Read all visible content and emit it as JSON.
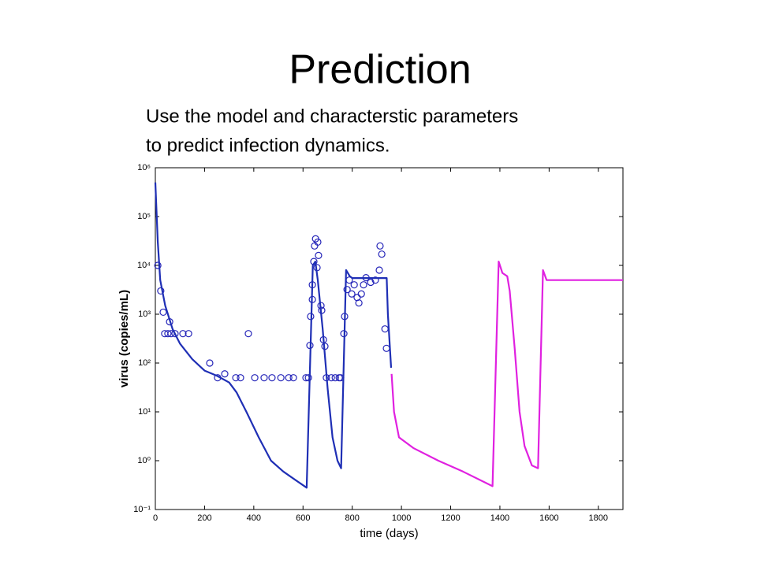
{
  "title": "Prediction",
  "subtitle_lines": [
    "Use the model and characterstic parameters",
    "to predict infection dynamics."
  ],
  "chart_data": {
    "type": "line",
    "xlabel": "time (days)",
    "ylabel": "virus (copies/mL)",
    "xlim": [
      0,
      1900
    ],
    "ylim": [
      0.1,
      1000000
    ],
    "log_y": true,
    "xticks": [
      0,
      200,
      400,
      600,
      800,
      1000,
      1200,
      1400,
      1600,
      1800
    ],
    "yticks": [
      {
        "value": 0.1,
        "label": "10⁻¹"
      },
      {
        "value": 1,
        "label": "10⁰"
      },
      {
        "value": 10,
        "label": "10¹"
      },
      {
        "value": 100,
        "label": "10²"
      },
      {
        "value": 1000,
        "label": "10³"
      },
      {
        "value": 10000,
        "label": "10⁴"
      },
      {
        "value": 100000,
        "label": "10⁵"
      },
      {
        "value": 1000000,
        "label": "10⁶"
      }
    ],
    "series": [
      {
        "type": "scatter",
        "color": "#2323b8",
        "x": [
          10,
          22,
          32,
          38,
          51,
          58,
          64,
          80,
          112,
          135,
          221,
          253,
          282,
          327,
          346,
          378,
          404,
          442,
          474,
          510,
          542,
          561,
          612,
          622,
          628,
          631,
          638,
          638,
          644,
          647,
          651,
          657,
          663,
          660,
          673,
          676,
          683,
          689,
          695,
          715,
          731,
          747,
          753,
          766,
          769,
          779,
          788,
          798,
          808,
          820,
          827,
          837,
          846,
          856,
          875,
          894,
          910,
          913,
          920,
          933,
          939
        ],
        "values": [
          10000,
          3000,
          1100,
          400,
          400,
          700,
          400,
          400,
          400,
          400,
          100,
          50,
          60,
          50,
          50,
          400,
          50,
          50,
          50,
          50,
          50,
          50,
          50,
          50,
          230,
          900,
          2000,
          4000,
          12000,
          25000,
          35000,
          9000,
          16000,
          30000,
          1500,
          1200,
          300,
          220,
          50,
          50,
          50,
          50,
          50,
          400,
          900,
          3200,
          5000,
          2600,
          4000,
          2200,
          1700,
          2600,
          4000,
          5600,
          4500,
          5000,
          8000,
          25000,
          17000,
          500,
          200
        ]
      },
      {
        "type": "line",
        "color": "#1f2fb5",
        "x": [
          0,
          10,
          20,
          40,
          70,
          100,
          150,
          200,
          250,
          300,
          330,
          370,
          420,
          470,
          520,
          570,
          615,
          640,
          650,
          660,
          680,
          700,
          720,
          740,
          755,
          775,
          790,
          800,
          940,
          945,
          958
        ],
        "values": [
          500000,
          30000,
          5000,
          1500,
          500,
          250,
          120,
          70,
          55,
          40,
          25,
          10,
          3,
          1,
          0.6,
          0.4,
          0.28,
          10000,
          12000,
          5000,
          500,
          30,
          3,
          1,
          0.7,
          8000,
          6000,
          5500,
          5500,
          1000,
          80
        ]
      },
      {
        "type": "line",
        "color": "#e021e0",
        "x": [
          960,
          970,
          990,
          1050,
          1150,
          1250,
          1370,
          1395,
          1410,
          1430,
          1440,
          1460,
          1480,
          1500,
          1530,
          1555,
          1575,
          1590,
          1700,
          1900
        ],
        "values": [
          60,
          10,
          3,
          1.8,
          1,
          0.6,
          0.3,
          12000,
          7000,
          6000,
          3000,
          200,
          10,
          2,
          0.8,
          0.7,
          8000,
          5000,
          5000,
          5000
        ]
      }
    ]
  }
}
